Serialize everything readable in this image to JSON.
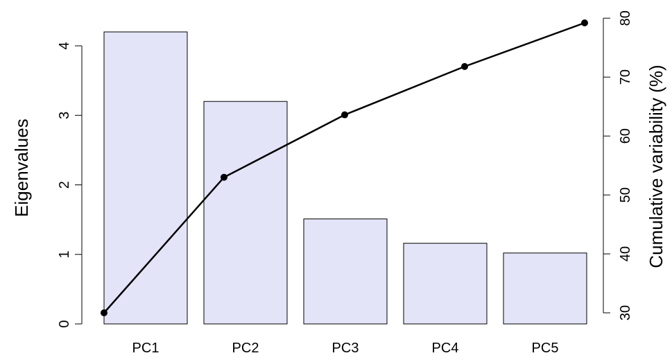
{
  "chart_data": {
    "type": "bar",
    "title": "",
    "categories": [
      "PC1",
      "PC2",
      "PC3",
      "PC4",
      "PC5"
    ],
    "series": [
      {
        "type": "bar",
        "axis": "left",
        "values": [
          4.2,
          3.2,
          1.51,
          1.16,
          1.02
        ],
        "color": "#e3e4f7"
      },
      {
        "type": "line",
        "axis": "right",
        "values": [
          30.0,
          53.0,
          63.6,
          71.8,
          79.2
        ],
        "color": "#000000"
      }
    ],
    "ylabel": "Eigenvalues",
    "ylim": [
      0,
      4.2
    ],
    "yticks": [
      0,
      1,
      2,
      3,
      4
    ],
    "y2label": "Cumulative variability (%)",
    "y2lim": [
      30,
      79.2
    ],
    "y2ticks": [
      30,
      40,
      50,
      60,
      70,
      80
    ],
    "grid": false,
    "legend": "none"
  }
}
